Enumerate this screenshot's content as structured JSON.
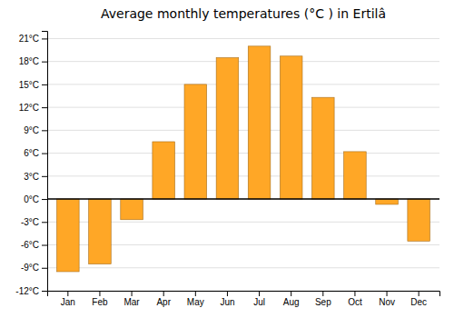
{
  "chart_data": {
    "type": "bar",
    "title": "Average monthly temperatures (°C ) in Ertilâ",
    "categories": [
      "Jan",
      "Feb",
      "Mar",
      "Apr",
      "May",
      "Jun",
      "Jul",
      "Aug",
      "Sep",
      "Oct",
      "Nov",
      "Dec"
    ],
    "values": [
      -9.5,
      -8.5,
      -2.7,
      7.5,
      15.0,
      18.5,
      20.0,
      18.7,
      13.3,
      6.2,
      -0.7,
      -5.5
    ],
    "color": "#FFA726",
    "ylim": [
      -12,
      22
    ],
    "yticks": [
      {
        "value": -12,
        "label": "-12°C"
      },
      {
        "value": -9,
        "label": "-9°C"
      },
      {
        "value": -6,
        "label": "-6°C"
      },
      {
        "value": -3,
        "label": "-3°C"
      },
      {
        "value": 0,
        "label": "0°C"
      },
      {
        "value": 3,
        "label": "3°C"
      },
      {
        "value": 6,
        "label": "6°C"
      },
      {
        "value": 9,
        "label": "9°C"
      },
      {
        "value": 12,
        "label": "12°C"
      },
      {
        "value": 15,
        "label": "15°C"
      },
      {
        "value": 18,
        "label": "18°C"
      },
      {
        "value": 21,
        "label": "21°C"
      }
    ],
    "grid": true
  }
}
